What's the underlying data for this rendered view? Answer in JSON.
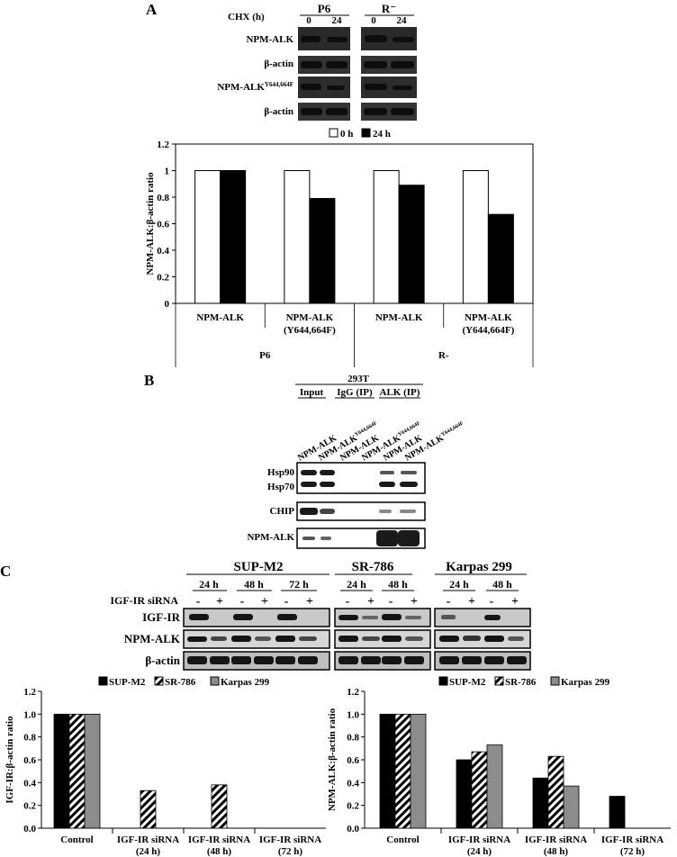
{
  "panel_a": {
    "letter": "A",
    "treatment_label": "CHX (h)",
    "cell_lines": [
      "P6",
      "R⁻"
    ],
    "timepoints": [
      "0",
      "24",
      "0",
      "24"
    ],
    "blot_labels": [
      "NPM-ALK",
      "β-actin",
      "NPM-ALK",
      "β-actin"
    ],
    "mutant_superscript": "Y644,664F"
  },
  "panel_b": {
    "letter": "B",
    "cell_line": "293T",
    "groups": [
      "Input",
      "IgG (IP)",
      "ALK (IP)"
    ],
    "lane_labels": [
      "NPM-ALK",
      "NPM-ALK",
      "NPM-ALK",
      "NPM-ALK",
      "NPM-ALK",
      "NPM-ALK"
    ],
    "lane_superscripts": [
      "",
      "Y644,664F",
      "",
      "Y644,664F",
      "",
      "Y644,664F"
    ],
    "blot_labels": [
      "Hsp90",
      "Hsp70",
      "CHIP",
      "NPM-ALK"
    ]
  },
  "panel_c": {
    "letter": "C",
    "cell_lines": [
      "SUP-M2",
      "SR-786",
      "Karpas 299"
    ],
    "supm2_times": [
      "24 h",
      "48 h",
      "72 h"
    ],
    "sr786_times": [
      "24 h",
      "48 h"
    ],
    "karpas_times": [
      "24 h",
      "48 h"
    ],
    "sirna_label": "IGF-IR siRNA",
    "minus": "-",
    "plus": "+",
    "blot_labels": [
      "IGF-IR",
      "NPM-ALK",
      "β-actin"
    ]
  },
  "chart_data": [
    {
      "type": "bar",
      "title": "",
      "ylabel": "NPM-ALK:β-actin ratio",
      "xlabel": "",
      "ylim": [
        0,
        1.2
      ],
      "yticks": [
        "0",
        "0.2",
        "0.4",
        "0.6",
        "0.8",
        "1",
        "1.2"
      ],
      "categories": [
        "NPM-ALK",
        "NPM-ALK",
        "NPM-ALK",
        "NPM-ALK"
      ],
      "category_sublabels": [
        "",
        "(Y644,664F)",
        "",
        "(Y644,664F)"
      ],
      "groups": [
        "P6",
        "R-"
      ],
      "series": [
        {
          "name": "0 h",
          "color": "#ffffff",
          "values": [
            1.0,
            1.0,
            1.0,
            1.0
          ]
        },
        {
          "name": "24 h",
          "color": "#000000",
          "values": [
            1.0,
            0.79,
            0.89,
            0.67
          ]
        }
      ],
      "legend": "top",
      "grid": false
    },
    {
      "type": "bar",
      "title": "",
      "ylabel": "IGF-IR:β-actin ratio",
      "xlabel": "",
      "ylim": [
        0,
        1.2
      ],
      "yticks": [
        "0.0",
        "0.2",
        "0.4",
        "0.6",
        "0.8",
        "1.0",
        "1.2"
      ],
      "categories": [
        "Control",
        "IGF-IR siRNA",
        "IGF-IR siRNA",
        "IGF-IR siRNA"
      ],
      "category_sublabels": [
        "",
        "(24 h)",
        "(48 h)",
        "(72 h)"
      ],
      "series": [
        {
          "name": "SUP-M2",
          "color": "#000000",
          "pattern": "solid",
          "values": [
            1.0,
            0,
            0,
            0
          ]
        },
        {
          "name": "SR-786",
          "color": "#000000",
          "pattern": "hatch",
          "values": [
            1.0,
            0.33,
            0.38,
            0
          ]
        },
        {
          "name": "Karpas 299",
          "color": "#8c8c8c",
          "pattern": "solid",
          "values": [
            1.0,
            0,
            0,
            0
          ]
        }
      ],
      "legend": "top",
      "grid": false
    },
    {
      "type": "bar",
      "title": "",
      "ylabel": "NPM-ALK:β-actin ratio",
      "xlabel": "",
      "ylim": [
        0,
        1.2
      ],
      "yticks": [
        "0.0",
        "0.2",
        "0.4",
        "0.6",
        "0.8",
        "1.0",
        "1.2"
      ],
      "categories": [
        "Control",
        "IGF-IR siRNA",
        "IGF-IR siRNA",
        "IGF-IR siRNA"
      ],
      "category_sublabels": [
        "",
        "(24 h)",
        "(48 h)",
        "(72 h)"
      ],
      "series": [
        {
          "name": "SUP-M2",
          "color": "#000000",
          "pattern": "solid",
          "values": [
            1.0,
            0.6,
            0.44,
            0.28
          ]
        },
        {
          "name": "SR-786",
          "color": "#000000",
          "pattern": "hatch",
          "values": [
            1.0,
            0.67,
            0.63,
            0
          ]
        },
        {
          "name": "Karpas 299",
          "color": "#8c8c8c",
          "pattern": "solid",
          "values": [
            1.0,
            0.73,
            0.37,
            0
          ]
        }
      ],
      "legend": "top",
      "grid": false
    }
  ]
}
